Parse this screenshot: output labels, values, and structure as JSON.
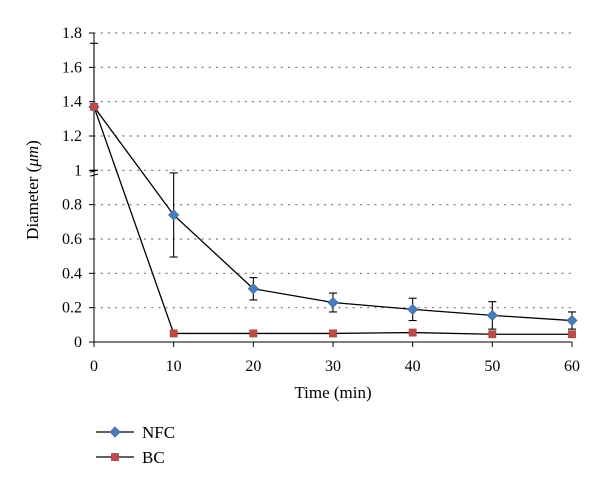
{
  "chart_data": {
    "type": "line",
    "title": "",
    "xlabel": "Time (min)",
    "ylabel": "Diameter (μm)",
    "ylabel_parts": [
      "Diameter (",
      "μm",
      ")"
    ],
    "x": [
      0,
      10,
      20,
      30,
      40,
      50,
      60
    ],
    "xlim": [
      0,
      60
    ],
    "ylim": [
      0,
      1.8
    ],
    "x_ticks": [
      0,
      10,
      20,
      30,
      40,
      50,
      60
    ],
    "y_ticks": [
      0,
      0.2,
      0.4,
      0.6,
      0.8,
      1,
      1.2,
      1.4,
      1.6,
      1.8
    ],
    "grid": "horizontal dotted",
    "legend_position": "bottom-left",
    "axis_break": "y-axis break between 1 and 1.2",
    "series": [
      {
        "name": "NFC",
        "marker": "diamond",
        "color": "#4a7ebb",
        "values": [
          1.37,
          0.74,
          0.31,
          0.23,
          0.19,
          0.155,
          0.125
        ],
        "error": [
          0.37,
          0.245,
          0.065,
          0.055,
          0.065,
          0.08,
          0.05
        ]
      },
      {
        "name": "BC",
        "marker": "square",
        "color": "#be4b48",
        "values": [
          1.37,
          0.05,
          0.05,
          0.05,
          0.055,
          0.045,
          0.045
        ],
        "error": [
          0,
          0,
          0,
          0,
          0,
          0,
          0
        ]
      }
    ]
  }
}
